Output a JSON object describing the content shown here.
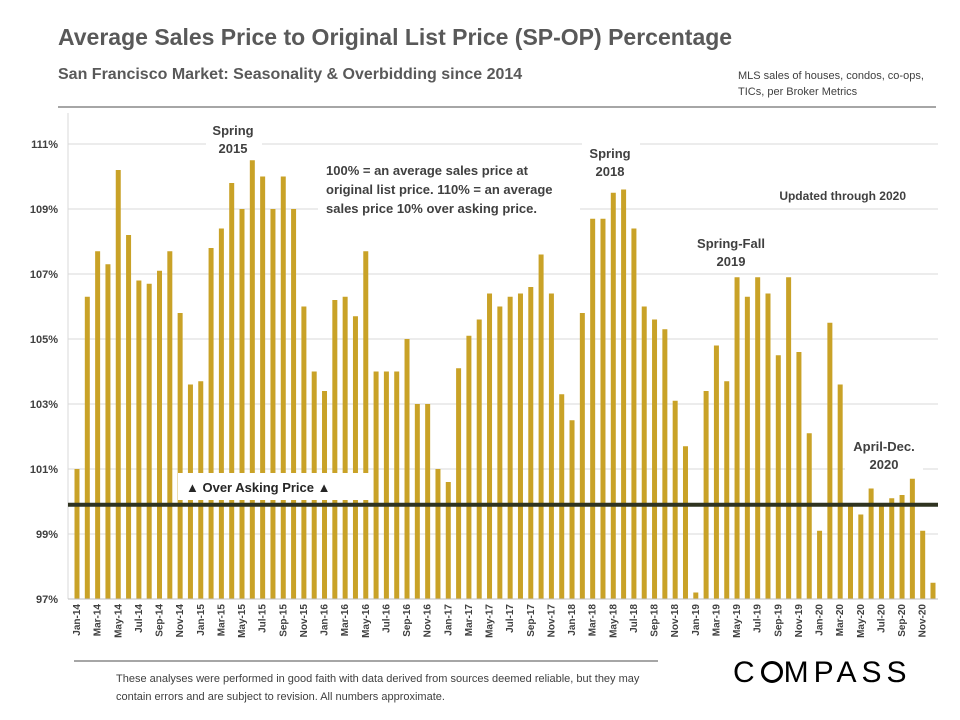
{
  "header": {
    "title": "Average Sales Price to Original List Price (SP-OP) Percentage",
    "subtitle": "San Francisco Market:  Seasonality  &  Overbidding  since 2014",
    "source_note": "MLS sales of houses, condos, co-ops, TICs, per Broker Metrics"
  },
  "chart_data": {
    "type": "bar",
    "title": "Average Sales Price to Original List Price (SP-OP) Percentage",
    "xlabel": "",
    "ylabel": "",
    "ylim": [
      97,
      112
    ],
    "yticks": [
      97,
      99,
      101,
      103,
      105,
      107,
      109,
      111
    ],
    "ytick_labels": [
      "97%",
      "99%",
      "101%",
      "103%",
      "105%",
      "107%",
      "109%",
      "111%"
    ],
    "grid": true,
    "bar_color": "#c9a227",
    "reference_line": {
      "value": 99.9,
      "label": "▲ Over Asking Price ▲"
    },
    "categories": [
      "Jan-14",
      "Feb-14",
      "Mar-14",
      "Apr-14",
      "May-14",
      "Jun-14",
      "Jul-14",
      "Aug-14",
      "Sep-14",
      "Oct-14",
      "Nov-14",
      "Dec-14",
      "Jan-15",
      "Feb-15",
      "Mar-15",
      "Apr-15",
      "May-15",
      "Jun-15",
      "Jul-15",
      "Aug-15",
      "Sep-15",
      "Oct-15",
      "Nov-15",
      "Dec-15",
      "Jan-16",
      "Feb-16",
      "Mar-16",
      "Apr-16",
      "May-16",
      "Jun-16",
      "Jul-16",
      "Aug-16",
      "Sep-16",
      "Oct-16",
      "Nov-16",
      "Dec-16",
      "Jan-17",
      "Feb-17",
      "Mar-17",
      "Apr-17",
      "May-17",
      "Jun-17",
      "Jul-17",
      "Aug-17",
      "Sep-17",
      "Oct-17",
      "Nov-17",
      "Dec-17",
      "Jan-18",
      "Feb-18",
      "Mar-18",
      "Apr-18",
      "May-18",
      "Jun-18",
      "Jul-18",
      "Aug-18",
      "Sep-18",
      "Oct-18",
      "Nov-18",
      "Dec-18",
      "Jan-19",
      "Feb-19",
      "Mar-19",
      "Apr-19",
      "May-19",
      "Jun-19",
      "Jul-19",
      "Aug-19",
      "Sep-19",
      "Oct-19",
      "Nov-19",
      "Dec-19",
      "Jan-20",
      "Feb-20",
      "Mar-20",
      "Apr-20",
      "May-20",
      "Jun-20",
      "Jul-20",
      "Aug-20",
      "Sep-20",
      "Oct-20",
      "Nov-20",
      "Dec-20"
    ],
    "values": [
      101.0,
      106.3,
      107.7,
      107.3,
      110.2,
      108.2,
      106.8,
      106.7,
      107.1,
      107.7,
      105.8,
      103.6,
      103.7,
      107.8,
      108.4,
      109.8,
      109.0,
      110.5,
      110.0,
      109.0,
      110.0,
      109.0,
      106.0,
      104.0,
      103.4,
      106.2,
      106.3,
      105.7,
      107.7,
      104.0,
      104.0,
      104.0,
      105.0,
      103.0,
      103.0,
      101.0,
      100.6,
      104.1,
      105.1,
      105.6,
      106.4,
      106.0,
      106.3,
      106.4,
      106.6,
      107.6,
      106.4,
      103.3,
      102.5,
      105.8,
      108.7,
      108.7,
      109.5,
      109.6,
      108.4,
      106.0,
      105.6,
      105.3,
      103.1,
      101.7,
      97.2,
      103.4,
      104.8,
      103.7,
      106.9,
      106.3,
      106.9,
      106.4,
      104.5,
      106.9,
      104.6,
      102.1,
      99.1,
      105.5,
      103.6,
      99.9,
      99.6,
      100.4,
      99.9,
      100.1,
      100.2,
      100.7,
      99.1,
      97.5
    ],
    "annotations": [
      {
        "id": "spring-2015",
        "lines": [
          "Spring",
          "2015"
        ]
      },
      {
        "id": "spring-2018",
        "lines": [
          "Spring",
          "2018"
        ]
      },
      {
        "id": "spring-fall-2019",
        "lines": [
          "Spring-Fall",
          "2019"
        ]
      },
      {
        "id": "april-dec-2020",
        "lines": [
          "April-Dec.",
          "2020"
        ]
      },
      {
        "id": "explanation",
        "lines": [
          "100% = an average sales price at",
          "original list price. 110% = an average",
          "sales price 10% over asking price."
        ]
      },
      {
        "id": "updated",
        "lines": [
          "Updated through 2020"
        ]
      }
    ]
  },
  "footer": {
    "note": "These analyses were performed in good faith with data derived from sources deemed reliable, but they may contain errors and are subject to revision. All numbers approximate.",
    "logo_parts": [
      "C",
      "MPASS"
    ]
  }
}
